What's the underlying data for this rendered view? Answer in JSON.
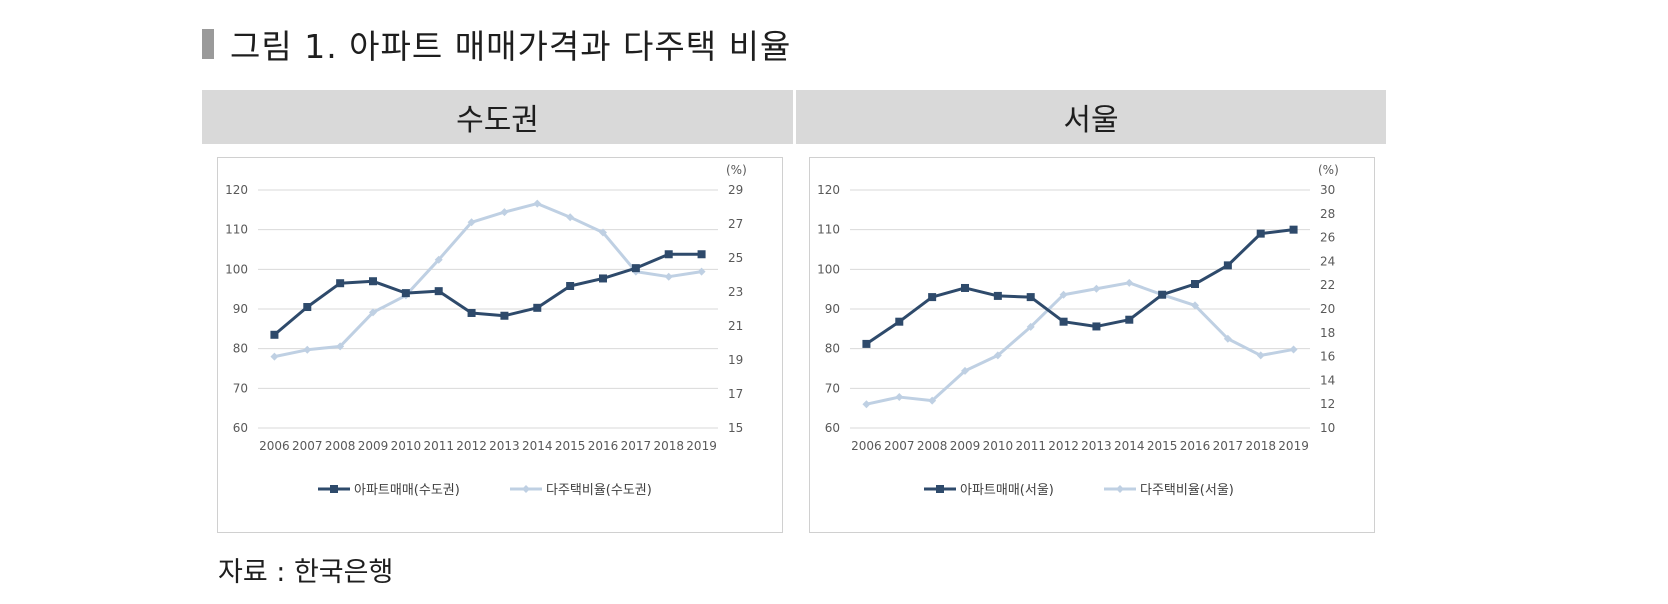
{
  "figure_title": "그림 1. 아파트 매매가격과 다주택 비율",
  "source": "자료 : 한국은행",
  "colors": {
    "price": "#2e4a6b",
    "ratio": "#bfd0e3",
    "header_bg": "#d9d9d9"
  },
  "chart_data": [
    {
      "panel_title": "수도권",
      "type": "line",
      "x": [
        "2006",
        "2007",
        "2008",
        "2009",
        "2010",
        "2011",
        "2012",
        "2013",
        "2014",
        "2015",
        "2016",
        "2017",
        "2018",
        "2019"
      ],
      "ylim": [
        60,
        120
      ],
      "yticks": [
        "60",
        "70",
        "80",
        "90",
        "100",
        "110",
        "120"
      ],
      "y2lim": [
        15,
        29
      ],
      "y2ticks": [
        "15",
        "17",
        "19",
        "21",
        "23",
        "25",
        "27",
        "29"
      ],
      "y2label": "(%)",
      "grid": true,
      "legend_position": "bottom",
      "series": [
        {
          "name": "아파트매매(수도권)",
          "axis": "left",
          "values": [
            83.5,
            90.5,
            96.5,
            97,
            94,
            94.5,
            89,
            88.3,
            90.3,
            95.8,
            97.7,
            100.3,
            103.8,
            103.8
          ]
        },
        {
          "name": "다주택비율(수도권)",
          "axis": "right",
          "values": [
            19.2,
            19.6,
            19.8,
            21.8,
            22.8,
            24.9,
            27.1,
            27.7,
            28.2,
            27.4,
            26.5,
            24.2,
            23.9,
            24.2
          ]
        }
      ]
    },
    {
      "panel_title": "서울",
      "type": "line",
      "x": [
        "2006",
        "2007",
        "2008",
        "2009",
        "2010",
        "2011",
        "2012",
        "2013",
        "2014",
        "2015",
        "2016",
        "2017",
        "2018",
        "2019"
      ],
      "ylim": [
        60,
        120
      ],
      "yticks": [
        "60",
        "70",
        "80",
        "90",
        "100",
        "110",
        "120"
      ],
      "y2lim": [
        10,
        30
      ],
      "y2ticks": [
        "10",
        "12",
        "14",
        "16",
        "18",
        "20",
        "22",
        "24",
        "26",
        "28",
        "30"
      ],
      "y2label": "(%)",
      "grid": true,
      "legend_position": "bottom",
      "series": [
        {
          "name": "아파트매매(서울)",
          "axis": "left",
          "values": [
            81.2,
            86.8,
            93,
            95.3,
            93.3,
            93,
            86.8,
            85.6,
            87.3,
            93.6,
            96.3,
            101,
            109,
            110
          ]
        },
        {
          "name": "다주택비율(서울)",
          "axis": "right",
          "values": [
            12,
            12.6,
            12.3,
            14.8,
            16.1,
            18.5,
            21.2,
            21.7,
            22.2,
            21.2,
            20.3,
            17.5,
            16.1,
            16.6
          ]
        }
      ]
    }
  ]
}
